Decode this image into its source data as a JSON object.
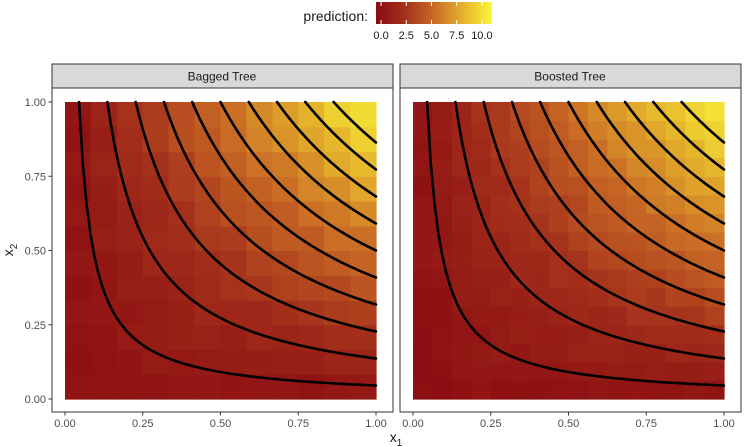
{
  "chart_data": {
    "type": "heatmap",
    "xlabel": "x",
    "xlabel_subscript": "1",
    "ylabel": "x",
    "ylabel_subscript": "2",
    "xlim": [
      0,
      1
    ],
    "ylim": [
      0,
      1
    ],
    "x_ticks": [
      "0.00",
      "0.25",
      "0.50",
      "0.75",
      "1.00"
    ],
    "y_ticks": [
      "0.00",
      "0.25",
      "0.50",
      "0.75",
      "1.00"
    ],
    "grid": false,
    "legend": {
      "title": "prediction:",
      "placement": "top",
      "range": [
        -0.5,
        11
      ],
      "ticks": [
        0,
        2.5,
        5,
        7.5,
        10
      ],
      "tick_labels": [
        "0.0",
        "2.5",
        "5.0",
        "7.5",
        "10.0"
      ],
      "colors": [
        "#8b0c12",
        "#a4301b",
        "#c96a25",
        "#e5b22c",
        "#f9f838"
      ]
    },
    "contour_levels": [
      0.5,
      1.5,
      2.5,
      3.5,
      4.5,
      5.5,
      6.5,
      7.5,
      8.5,
      9.5
    ],
    "panels": [
      {
        "title": "Bagged Tree",
        "grid_size": 12,
        "cell_boundaries": [
          0,
          0.083,
          0.167,
          0.25,
          0.333,
          0.417,
          0.5,
          0.583,
          0.667,
          0.75,
          0.833,
          0.917,
          1.0
        ]
      },
      {
        "title": "Boosted Tree",
        "grid_size": 16,
        "cell_boundaries": [
          0,
          0.0625,
          0.125,
          0.1875,
          0.25,
          0.3125,
          0.375,
          0.4375,
          0.5,
          0.5625,
          0.625,
          0.6875,
          0.75,
          0.8125,
          0.875,
          0.9375,
          1.0
        ]
      }
    ]
  }
}
